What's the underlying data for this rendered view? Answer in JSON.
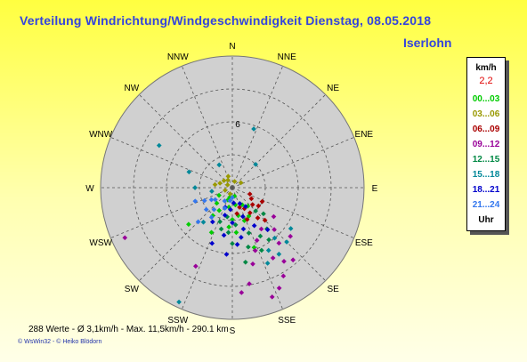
{
  "header": {
    "title": "Verteilung Windrichtung/Windgeschwindigkeit  Dienstag, 08.05.2018",
    "location": "Iserlohn"
  },
  "colors": {
    "title": "#3344dd",
    "plot_bg": "#d0d0d0",
    "grid": "#555555",
    "background_top": "#ffff40",
    "background_bottom": "#ffffe8"
  },
  "legend": {
    "unit": "km/h",
    "calm_value": "2,2",
    "rows": [
      {
        "label": "00...03",
        "color": "#00cc00"
      },
      {
        "label": "03...06",
        "color": "#999900"
      },
      {
        "label": "06...09",
        "color": "#aa0000"
      },
      {
        "label": "09...12",
        "color": "#990099"
      },
      {
        "label": "12...15",
        "color": "#008844"
      },
      {
        "label": "15...18",
        "color": "#008899"
      },
      {
        "label": "18...21",
        "color": "#0000cc"
      },
      {
        "label": "21...24",
        "color": "#3377ee"
      }
    ],
    "footer_label": "Uhr"
  },
  "footer": {
    "stats": "288 Werte   -   Ø 3,1km/h  -  Max. 11,5km/h   -   290.1 km",
    "copyright": "© WsWin32   -  © Heiko Blödorn"
  },
  "chart_data": {
    "type": "scatter",
    "subtype": "polar-wind-rose",
    "directions": [
      "N",
      "NNE",
      "NE",
      "ENE",
      "E",
      "ESE",
      "SE",
      "SSE",
      "S",
      "SSW",
      "SW",
      "WSW",
      "W",
      "WNW",
      "NW",
      "NNW"
    ],
    "radial_tick_labels": [
      "6"
    ],
    "radial_max": 12,
    "grid": true,
    "legend_position": "right",
    "series": [
      {
        "name": "00...03",
        "points": [
          [
            160,
            3.2
          ],
          [
            168,
            2.6
          ],
          [
            190,
            1.8
          ],
          [
            210,
            2.4
          ],
          [
            175,
            4.1
          ],
          [
            150,
            3.0
          ],
          [
            200,
            1.2
          ],
          [
            225,
            2.0
          ],
          [
            185,
            3.6
          ],
          [
            140,
            2.2
          ],
          [
            195,
            0.9
          ],
          [
            170,
            1.6
          ],
          [
            205,
            4.5
          ],
          [
            230,
            5.2
          ],
          [
            160,
            5.8
          ],
          [
            240,
            1.4
          ],
          [
            180,
            2.9
          ],
          [
            150,
            1.8
          ],
          [
            215,
            3.1
          ],
          [
            165,
            0.8
          ]
        ]
      },
      {
        "name": "03...06",
        "points": [
          [
            310,
            1.0
          ],
          [
            330,
            0.8
          ],
          [
            290,
            1.2
          ],
          [
            20,
            0.6
          ],
          [
            300,
            0.5
          ],
          [
            250,
            0.7
          ],
          [
            340,
            1.1
          ],
          [
            60,
            0.9
          ],
          [
            280,
            1.6
          ],
          [
            200,
            0.6
          ]
        ]
      },
      {
        "name": "06...09",
        "points": [
          [
            130,
            2.4
          ],
          [
            145,
            2.8
          ],
          [
            120,
            2.0
          ],
          [
            155,
            3.2
          ],
          [
            140,
            3.6
          ],
          [
            110,
            1.7
          ],
          [
            150,
            2.2
          ],
          [
            125,
            2.9
          ],
          [
            160,
            1.9
          ],
          [
            135,
            4.2
          ],
          [
            115,
            3.0
          ],
          [
            170,
            2.4
          ]
        ]
      },
      {
        "name": "09...12",
        "points": [
          [
            145,
            8.2
          ],
          [
            150,
            9.3
          ],
          [
            155,
            10.1
          ],
          [
            160,
            10.6
          ],
          [
            165,
            7.2
          ],
          [
            140,
            6.6
          ],
          [
            135,
            5.4
          ],
          [
            125,
            4.6
          ],
          [
            130,
            6.9
          ],
          [
            245,
            10.8
          ],
          [
            205,
            7.9
          ],
          [
            170,
            8.9
          ],
          [
            150,
            7.4
          ],
          [
            140,
            8.6
          ],
          [
            160,
            6.1
          ],
          [
            155,
            5.3
          ],
          [
            145,
            4.6
          ],
          [
            175,
            9.6
          ]
        ]
      },
      {
        "name": "12...15",
        "points": [
          [
            150,
            5.1
          ],
          [
            160,
            4.4
          ],
          [
            140,
            4.9
          ],
          [
            175,
            3.4
          ],
          [
            185,
            4.1
          ],
          [
            195,
            3.9
          ],
          [
            165,
            5.6
          ],
          [
            130,
            3.7
          ],
          [
            180,
            5.1
          ],
          [
            155,
            6.3
          ],
          [
            145,
            5.8
          ],
          [
            170,
            6.9
          ],
          [
            190,
            2.7
          ],
          [
            135,
            3.0
          ],
          [
            200,
            3.3
          ]
        ]
      },
      {
        "name": "15...18",
        "points": [
          [
            145,
            7.4
          ],
          [
            140,
            6.0
          ],
          [
            150,
            6.6
          ],
          [
            155,
            7.6
          ],
          [
            20,
            5.7
          ],
          [
            45,
            3.0
          ],
          [
            300,
            7.7
          ],
          [
            290,
            4.2
          ],
          [
            270,
            3.4
          ],
          [
            260,
            1.9
          ],
          [
            330,
            2.4
          ],
          [
            220,
            4.1
          ],
          [
            205,
            11.5
          ],
          [
            125,
            6.5
          ],
          [
            135,
            7.0
          ]
        ]
      },
      {
        "name": "18...21",
        "points": [
          [
            180,
            3.2
          ],
          [
            190,
            4.4
          ],
          [
            170,
            4.6
          ],
          [
            200,
            5.4
          ],
          [
            185,
            6.1
          ],
          [
            175,
            5.2
          ],
          [
            160,
            2.8
          ],
          [
            195,
            2.6
          ],
          [
            210,
            3.6
          ],
          [
            165,
            3.9
          ],
          [
            150,
            4.0
          ],
          [
            140,
            5.0
          ],
          [
            185,
            2.0
          ],
          [
            175,
            1.4
          ],
          [
            155,
            1.6
          ],
          [
            145,
            2.1
          ],
          [
            200,
            1.9
          ]
        ]
      },
      {
        "name": "21...24",
        "points": [
          [
            220,
            2.6
          ],
          [
            230,
            3.1
          ],
          [
            240,
            2.2
          ],
          [
            250,
            3.6
          ],
          [
            200,
            2.0
          ],
          [
            210,
            1.4
          ],
          [
            190,
            1.2
          ],
          [
            180,
            0.9
          ],
          [
            235,
            1.9
          ],
          [
            245,
            2.8
          ],
          [
            215,
            3.3
          ],
          [
            225,
            4.4
          ]
        ]
      }
    ]
  }
}
